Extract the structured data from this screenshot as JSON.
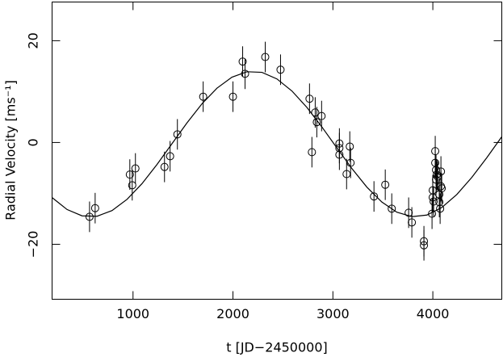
{
  "chart_data": {
    "type": "scatter",
    "xlabel": "t [JD−2450000]",
    "ylabel": "Radial Velocity [ms⁻¹]",
    "xlim": [
      190,
      4690
    ],
    "ylim": [
      -30.8,
      27.6
    ],
    "xticks": [
      1000,
      2000,
      3000,
      4000
    ],
    "yticks": [
      {
        "value": -20,
        "label": "−20"
      },
      0,
      20
    ],
    "color": "#000000",
    "x": [
      565,
      621,
      968,
      992,
      1024,
      1315,
      1371,
      1444,
      1702,
      2000,
      2097,
      2121,
      2323,
      2476,
      2766,
      2790,
      2823,
      2839,
      2887,
      3065,
      3065,
      3065,
      3169,
      3137,
      3177,
      3411,
      3524,
      3589,
      3758,
      3790,
      3911,
      3911,
      4024,
      4024,
      4032,
      4040,
      4048,
      4032,
      3999,
      3999,
      4008,
      3992,
      4065,
      4065,
      4073,
      4081,
      4081,
      4089
    ],
    "values": [
      -14.6,
      -12.9,
      -6.3,
      -8.4,
      -5.1,
      -4.8,
      -2.7,
      1.6,
      9.0,
      9.0,
      15.9,
      13.5,
      16.8,
      14.3,
      8.6,
      -1.9,
      5.9,
      4.0,
      5.2,
      -0.2,
      -1.1,
      -2.4,
      -0.8,
      -6.2,
      -4.0,
      -10.6,
      -8.3,
      -13.0,
      -13.8,
      -15.7,
      -19.4,
      -20.2,
      -1.7,
      -4.0,
      -5.4,
      -6.3,
      -6.7,
      -7.3,
      -9.4,
      -10.8,
      -11.6,
      -14.0,
      -10.2,
      -11.7,
      -13.0,
      -8.6,
      -5.7,
      -9.0
    ],
    "errors": [
      3,
      3,
      3,
      3,
      3,
      3,
      3,
      3,
      3,
      3,
      3,
      3,
      3,
      3,
      3,
      3,
      3,
      3,
      3,
      3,
      3,
      3,
      3,
      3,
      3,
      3,
      3,
      3,
      3,
      3,
      3,
      3,
      3,
      3,
      3,
      3,
      3,
      3,
      3,
      3,
      3,
      3,
      3,
      3,
      3,
      3,
      3,
      3
    ],
    "model": {
      "type": "line",
      "x": [
        190,
        340,
        490,
        640,
        790,
        940,
        1090,
        1240,
        1390,
        1540,
        1690,
        1840,
        1990,
        2140,
        2290,
        2440,
        2590,
        2740,
        2890,
        3040,
        3190,
        3340,
        3490,
        3640,
        3790,
        3940,
        4090,
        4240,
        4390,
        4540,
        4690
      ],
      "values": [
        -10.82,
        -13.17,
        -14.41,
        -14.49,
        -13.37,
        -11.17,
        -8.08,
        -4.32,
        -0.23,
        3.85,
        7.61,
        10.67,
        12.84,
        13.9,
        13.78,
        12.49,
        10.12,
        6.89,
        3.05,
        -1.06,
        -5.12,
        -8.77,
        -11.7,
        -13.7,
        -14.57,
        -14.26,
        -12.77,
        -10.22,
        -6.86,
        -2.99,
        1.14
      ]
    }
  }
}
